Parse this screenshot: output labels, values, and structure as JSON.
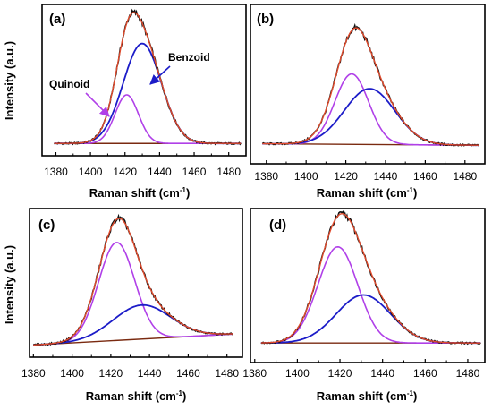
{
  "colors": {
    "raw": "#111111",
    "fit": "#e04a2c",
    "quinoid": "#b040e8",
    "benzoid": "#1c1cc8",
    "baseline": "#7a2a10",
    "frame": "#000000"
  },
  "y_label": "Intensity (a.u.)",
  "x_label_text": "Raman shift (cm",
  "x_label_sup": "-1",
  "x_label_close": ")",
  "chart_data": [
    {
      "panel": "(a)",
      "type": "line",
      "xlim": [
        1372,
        1490
      ],
      "ylim": [
        0,
        1.0
      ],
      "x_ticks": [
        "1380",
        "1400",
        "1420",
        "1440",
        "1460",
        "1480"
      ],
      "xlabel": "Raman shift (cm-1)",
      "ylabel": "Intensity (a.u.)",
      "annotations": [
        {
          "text": "Benzoid",
          "points_to": "Benzoid component"
        },
        {
          "text": "Quinoid",
          "points_to": "Quinoid component"
        }
      ],
      "baseline": [
        [
          1379,
          0.05
        ],
        [
          1487,
          0.05
        ]
      ],
      "series": [
        {
          "role": "Quinoid",
          "center": 1421,
          "amplitude": 0.35,
          "fwhm": 16,
          "color_key": "quinoid"
        },
        {
          "role": "Benzoid",
          "center": 1430,
          "amplitude": 0.72,
          "fwhm": 26,
          "color_key": "benzoid"
        },
        {
          "role": "fit",
          "components": [
            "Quinoid",
            "Benzoid"
          ],
          "color_key": "fit"
        },
        {
          "role": "raw",
          "follows": "fit",
          "color_key": "raw"
        }
      ]
    },
    {
      "panel": "(b)",
      "type": "line",
      "xlim": [
        1372,
        1490
      ],
      "ylim": [
        0,
        1.0
      ],
      "x_ticks": [
        "1380",
        "1400",
        "1420",
        "1440",
        "1460",
        "1480"
      ],
      "xlabel": "Raman shift (cm-1)",
      "ylabel": "",
      "baseline": [
        [
          1378,
          0.1
        ],
        [
          1487,
          0.09
        ]
      ],
      "series": [
        {
          "role": "Quinoid",
          "center": 1423,
          "amplitude": 0.48,
          "fwhm": 20,
          "color_key": "quinoid"
        },
        {
          "role": "Benzoid",
          "center": 1432,
          "amplitude": 0.38,
          "fwhm": 30,
          "color_key": "benzoid"
        },
        {
          "role": "fit",
          "components": [
            "Quinoid",
            "Benzoid"
          ],
          "color_key": "fit"
        },
        {
          "role": "raw",
          "follows": "fit",
          "color_key": "raw"
        }
      ]
    },
    {
      "panel": "(c)",
      "type": "line",
      "xlim": [
        1378,
        1488
      ],
      "ylim": [
        0,
        1.0
      ],
      "x_ticks": [
        "1380",
        "1400",
        "1420",
        "1440",
        "1460",
        "1480"
      ],
      "xlabel": "Raman shift (cm-1)",
      "ylabel": "Intensity (a.u.)",
      "baseline": [
        [
          1380,
          0.05
        ],
        [
          1483,
          0.13
        ]
      ],
      "series": [
        {
          "role": "Quinoid",
          "center": 1423,
          "amplitude": 0.72,
          "fwhm": 22,
          "color_key": "quinoid"
        },
        {
          "role": "Benzoid",
          "center": 1436,
          "amplitude": 0.25,
          "fwhm": 35,
          "color_key": "benzoid"
        },
        {
          "role": "fit",
          "components": [
            "Quinoid",
            "Benzoid"
          ],
          "color_key": "fit"
        },
        {
          "role": "raw",
          "follows": "fit",
          "color_key": "raw"
        }
      ]
    },
    {
      "panel": "(d)",
      "type": "line",
      "xlim": [
        1378,
        1488
      ],
      "ylim": [
        0,
        1.0
      ],
      "x_ticks": [
        "1380",
        "1400",
        "1420",
        "1440",
        "1460",
        "1480"
      ],
      "xlabel": "Raman shift (cm-1)",
      "ylabel": "",
      "baseline": [
        [
          1383,
          0.1
        ],
        [
          1486,
          0.1
        ]
      ],
      "series": [
        {
          "role": "Quinoid",
          "center": 1419,
          "amplitude": 0.68,
          "fwhm": 22,
          "color_key": "quinoid"
        },
        {
          "role": "Benzoid",
          "center": 1431,
          "amplitude": 0.34,
          "fwhm": 30,
          "color_key": "benzoid"
        },
        {
          "role": "fit",
          "components": [
            "Quinoid",
            "Benzoid"
          ],
          "color_key": "fit"
        },
        {
          "role": "raw",
          "follows": "fit",
          "color_key": "raw"
        }
      ]
    }
  ]
}
